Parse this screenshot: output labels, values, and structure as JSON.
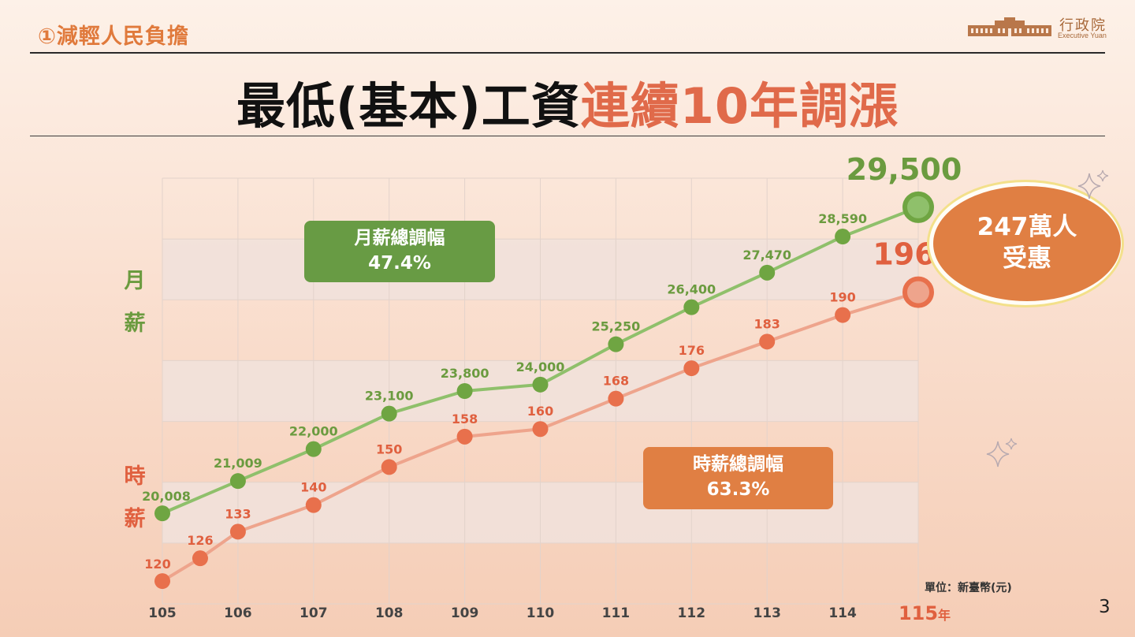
{
  "header": {
    "section_label": "①減輕人民負擔",
    "logo_cn": "行政院",
    "logo_en": "Executive Yuan"
  },
  "title": {
    "part1": "最低(基本)工資",
    "part2": "連續10年調漲"
  },
  "callouts": {
    "monthly_title": "月薪總調幅",
    "monthly_value": "47.4%",
    "hourly_title": "時薪總調幅",
    "hourly_value": "63.3%"
  },
  "badge": {
    "line1": "247萬人",
    "line2": "受惠"
  },
  "y_labels": {
    "monthly": [
      "月",
      "薪"
    ],
    "hourly": [
      "時",
      "薪"
    ]
  },
  "unit_label": "單位：新臺幣(元)",
  "page_number": "3",
  "colors": {
    "monthly": "#8fc06b",
    "monthly_dot": "#6fa542",
    "monthly_label": "#6b9b3f",
    "hourly": "#eea48c",
    "hourly_dot": "#e8704c",
    "hourly_label": "#e0603f",
    "accent_orange": "#e07f43"
  },
  "chart_data": {
    "type": "line",
    "x_ticks": [
      "105",
      "106",
      "107",
      "108",
      "109",
      "110",
      "111",
      "112",
      "113",
      "114"
    ],
    "x_final_label": "115",
    "x_final_suffix": "年",
    "series": [
      {
        "key": "monthly",
        "x": [
          105,
          106,
          107,
          108,
          109,
          110,
          111,
          112,
          113,
          114,
          115
        ],
        "values": [
          20008,
          21009,
          22000,
          23100,
          23800,
          24000,
          25250,
          26400,
          27470,
          28590,
          29500
        ],
        "labels": [
          "20,008",
          "21,009",
          "22,000",
          "23,100",
          "23,800",
          "24,000",
          "25,250",
          "26,400",
          "27,470",
          "28,590",
          "29,500"
        ]
      },
      {
        "key": "hourly",
        "x": [
          105,
          105.5,
          106,
          107,
          108,
          109,
          110,
          111,
          112,
          113,
          114,
          115
        ],
        "values": [
          120,
          126,
          133,
          140,
          150,
          158,
          160,
          168,
          176,
          183,
          190,
          196
        ],
        "labels": [
          "120",
          "126",
          "133",
          "140",
          "150",
          "158",
          "160",
          "168",
          "176",
          "183",
          "190",
          "196"
        ]
      }
    ],
    "monthly_ylim": [
      17200,
      30400
    ],
    "hourly_ylim": [
      114,
      226
    ],
    "grid": true
  }
}
